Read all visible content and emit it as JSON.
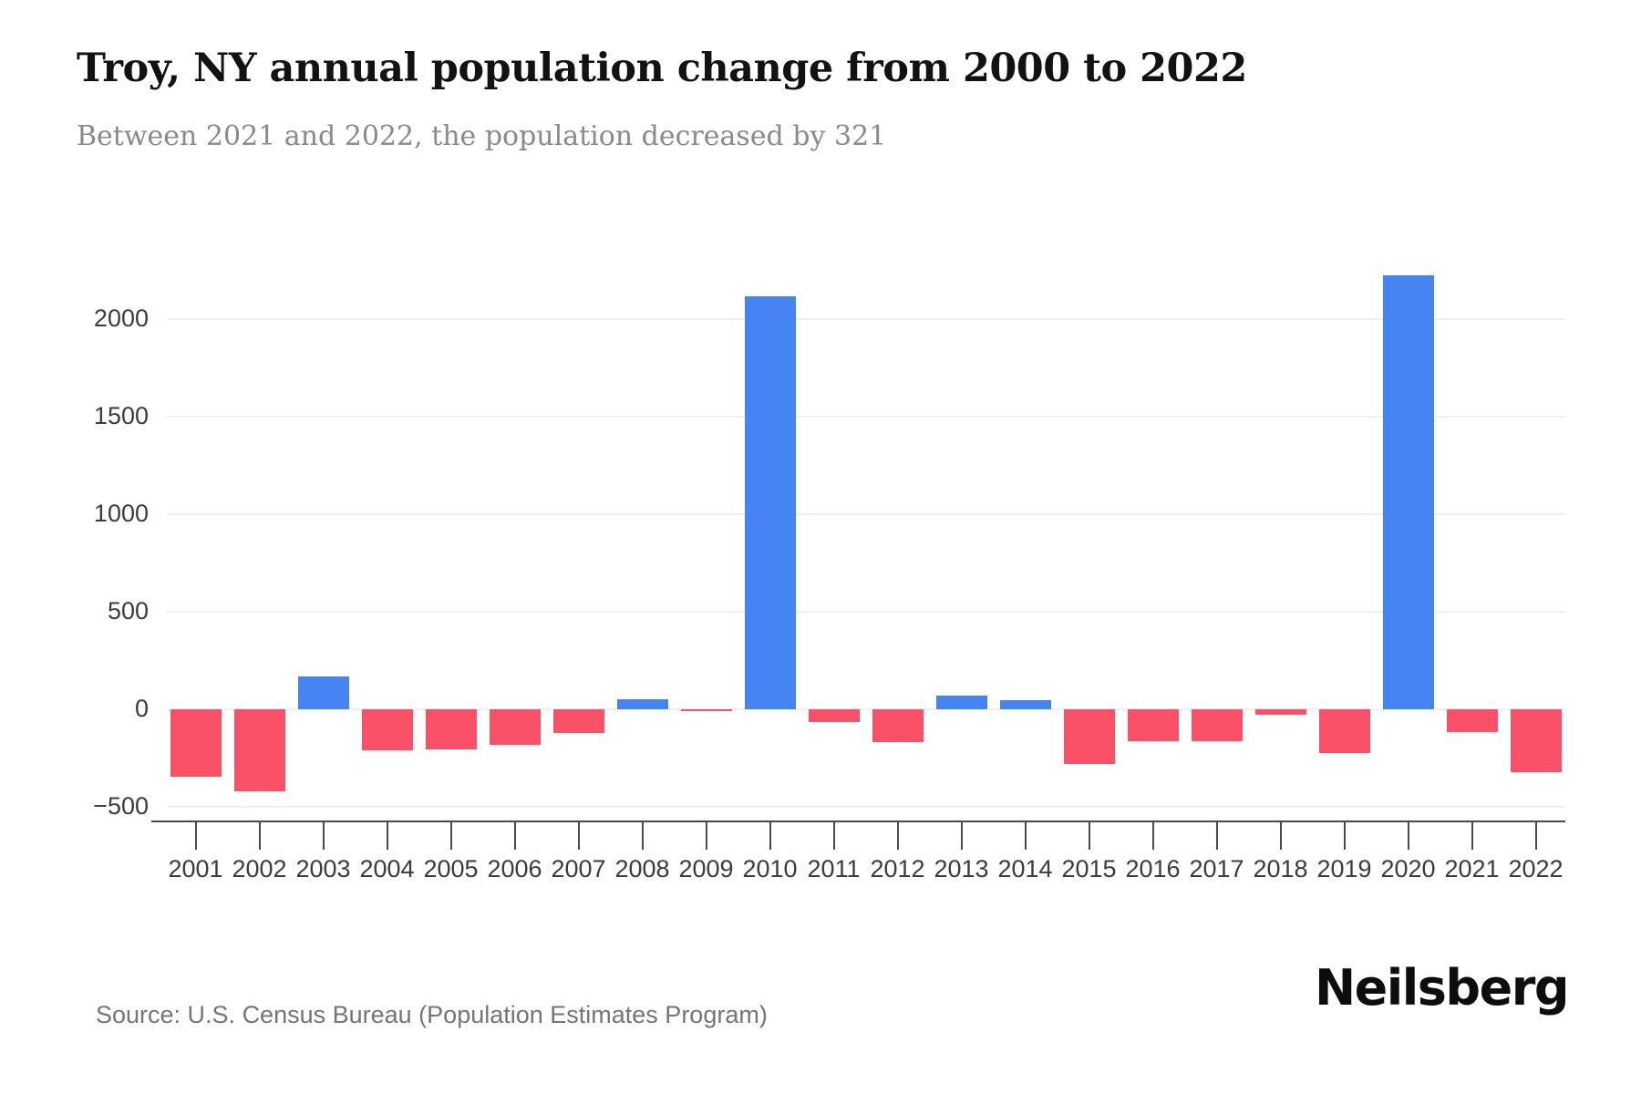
{
  "header": {
    "title": "Troy, NY annual population change from 2000 to 2022",
    "subtitle": "Between 2021 and 2022, the population decreased by 321"
  },
  "footer": {
    "source": "Source: U.S. Census Bureau (Population Estimates Program)",
    "brand": "Neilsberg"
  },
  "colors": {
    "positive_bar": "#4485F3",
    "negative_bar": "#FB5168",
    "gridline": "#F0F0F0",
    "axis": "#4A4A4A",
    "label_text": "#3C3C3C"
  },
  "chart_data": {
    "type": "bar",
    "title": "Troy, NY annual population change from 2000 to 2022",
    "subtitle": "Between 2021 and 2022, the population decreased by 321",
    "xlabel": "",
    "ylabel": "",
    "categories": [
      "2001",
      "2002",
      "2003",
      "2004",
      "2005",
      "2006",
      "2007",
      "2008",
      "2009",
      "2010",
      "2011",
      "2012",
      "2013",
      "2014",
      "2015",
      "2016",
      "2017",
      "2018",
      "2019",
      "2020",
      "2021",
      "2022"
    ],
    "values": [
      -345,
      -420,
      170,
      -210,
      -205,
      -180,
      -120,
      50,
      -10,
      2115,
      -65,
      -170,
      70,
      45,
      -280,
      -165,
      -165,
      -30,
      -225,
      2225,
      -115,
      -321
    ],
    "y_axis": {
      "range": [
        -500,
        2330
      ],
      "ticks": [
        {
          "label": "2000",
          "value": 2000
        },
        {
          "label": "1500",
          "value": 1500
        },
        {
          "label": "1000",
          "value": 1000
        },
        {
          "label": "500",
          "value": 500
        },
        {
          "label": "0",
          "value": 0
        },
        {
          "label": "−500",
          "value": -500
        }
      ]
    },
    "grid": "horizontal",
    "legend": "none"
  }
}
